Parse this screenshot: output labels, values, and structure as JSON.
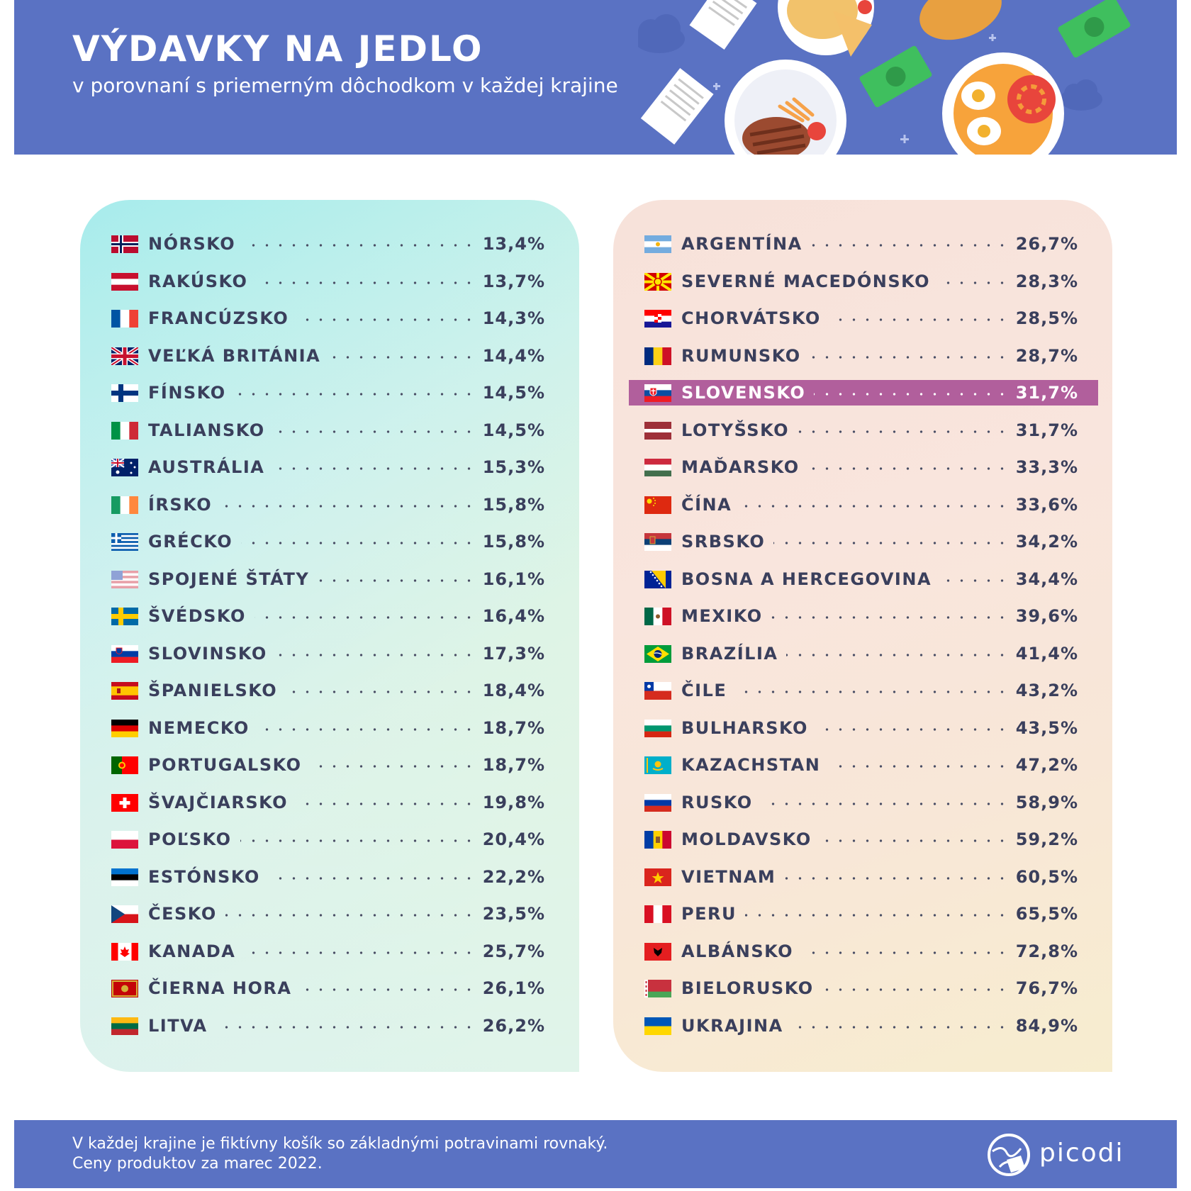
{
  "header": {
    "title": "VÝDAVKY NA JEDLO",
    "subtitle": "v porovnaní s priemerným dôchodkom v každej krajine"
  },
  "chart_data": {
    "type": "table",
    "title": "VÝDAVKY NA JEDLO",
    "subtitle": "v porovnaní s priemerným dôchodkom v každej krajine",
    "highlight": "SLOVENSKO",
    "highlight_color": "#b15f9c",
    "columns": [
      {
        "rows": [
          {
            "country": "NÓRSKO",
            "value": "13,4%",
            "flag": "norway-flag-icon"
          },
          {
            "country": "RAKÚSKO",
            "value": "13,7%",
            "flag": "austria-flag-icon"
          },
          {
            "country": "FRANCÚZSKO",
            "value": "14,3%",
            "flag": "france-flag-icon"
          },
          {
            "country": "VEĽKÁ BRITÁNIA",
            "value": "14,4%",
            "flag": "uk-flag-icon"
          },
          {
            "country": "FÍNSKO",
            "value": "14,5%",
            "flag": "finland-flag-icon"
          },
          {
            "country": "TALIANSKO",
            "value": "14,5%",
            "flag": "italy-flag-icon"
          },
          {
            "country": "AUSTRÁLIA",
            "value": "15,3%",
            "flag": "australia-flag-icon"
          },
          {
            "country": "ÍRSKO",
            "value": "15,8%",
            "flag": "ireland-flag-icon"
          },
          {
            "country": "GRÉCKO",
            "value": "15,8%",
            "flag": "greece-flag-icon"
          },
          {
            "country": "SPOJENÉ ŠTÁTY",
            "value": "16,1%",
            "flag": "usa-flag-icon"
          },
          {
            "country": "ŠVÉDSKO",
            "value": "16,4%",
            "flag": "sweden-flag-icon"
          },
          {
            "country": "SLOVINSKO",
            "value": "17,3%",
            "flag": "slovenia-flag-icon"
          },
          {
            "country": "ŠPANIELSKO",
            "value": "18,4%",
            "flag": "spain-flag-icon"
          },
          {
            "country": "NEMECKO",
            "value": "18,7%",
            "flag": "germany-flag-icon"
          },
          {
            "country": "PORTUGALSKO",
            "value": "18,7%",
            "flag": "portugal-flag-icon"
          },
          {
            "country": "ŠVAJČIARSKO",
            "value": "19,8%",
            "flag": "switzerland-flag-icon"
          },
          {
            "country": "POĽSKO",
            "value": "20,4%",
            "flag": "poland-flag-icon"
          },
          {
            "country": "ESTÓNSKO",
            "value": "22,2%",
            "flag": "estonia-flag-icon"
          },
          {
            "country": "ČESKO",
            "value": "23,5%",
            "flag": "czechia-flag-icon"
          },
          {
            "country": "KANADA",
            "value": "25,7%",
            "flag": "canada-flag-icon"
          },
          {
            "country": "ČIERNA HORA",
            "value": "26,1%",
            "flag": "montenegro-flag-icon"
          },
          {
            "country": "LITVA",
            "value": "26,2%",
            "flag": "lithuania-flag-icon"
          }
        ]
      },
      {
        "rows": [
          {
            "country": "ARGENTÍNA",
            "value": "26,7%",
            "flag": "argentina-flag-icon"
          },
          {
            "country": "SEVERNÉ MACEDÓNSKO",
            "value": "28,3%",
            "flag": "north-macedonia-flag-icon"
          },
          {
            "country": "CHORVÁTSKO",
            "value": "28,5%",
            "flag": "croatia-flag-icon"
          },
          {
            "country": "RUMUNSKO",
            "value": "28,7%",
            "flag": "romania-flag-icon"
          },
          {
            "country": "SLOVENSKO",
            "value": "31,7%",
            "flag": "slovakia-flag-icon"
          },
          {
            "country": "LOTYŠSKO",
            "value": "31,7%",
            "flag": "latvia-flag-icon"
          },
          {
            "country": "MAĎARSKO",
            "value": "33,3%",
            "flag": "hungary-flag-icon"
          },
          {
            "country": "ČÍNA",
            "value": "33,6%",
            "flag": "china-flag-icon"
          },
          {
            "country": "SRBSKO",
            "value": "34,2%",
            "flag": "serbia-flag-icon"
          },
          {
            "country": "BOSNA A HERCEGOVINA",
            "value": "34,4%",
            "flag": "bosnia-flag-icon"
          },
          {
            "country": "MEXIKO",
            "value": "39,6%",
            "flag": "mexico-flag-icon"
          },
          {
            "country": "BRAZÍLIA",
            "value": "41,4%",
            "flag": "brazil-flag-icon"
          },
          {
            "country": "ČILE",
            "value": "43,2%",
            "flag": "chile-flag-icon"
          },
          {
            "country": "BULHARSKO",
            "value": "43,5%",
            "flag": "bulgaria-flag-icon"
          },
          {
            "country": "KAZACHSTAN",
            "value": "47,2%",
            "flag": "kazakhstan-flag-icon"
          },
          {
            "country": "RUSKO",
            "value": "58,9%",
            "flag": "russia-flag-icon"
          },
          {
            "country": "MOLDAVSKO",
            "value": "59,2%",
            "flag": "moldova-flag-icon"
          },
          {
            "country": "VIETNAM",
            "value": "60,5%",
            "flag": "vietnam-flag-icon"
          },
          {
            "country": "PERU",
            "value": "65,5%",
            "flag": "peru-flag-icon"
          },
          {
            "country": "ALBÁNSKO",
            "value": "72,8%",
            "flag": "albania-flag-icon"
          },
          {
            "country": "BIELORUSKO",
            "value": "76,7%",
            "flag": "belarus-flag-icon"
          },
          {
            "country": "UKRAJINA",
            "value": "84,9%",
            "flag": "ukraine-flag-icon"
          }
        ]
      }
    ]
  },
  "footer": {
    "note_line1": "V každej krajine je fiktívny košík so základnými potravinami rovnaký.",
    "note_line2": "Ceny produktov za marec 2022.",
    "brand": "picodi"
  },
  "colors": {
    "header_bg": "#5a72c3",
    "text": "#3a3f5c",
    "highlight": "#b15f9c"
  }
}
